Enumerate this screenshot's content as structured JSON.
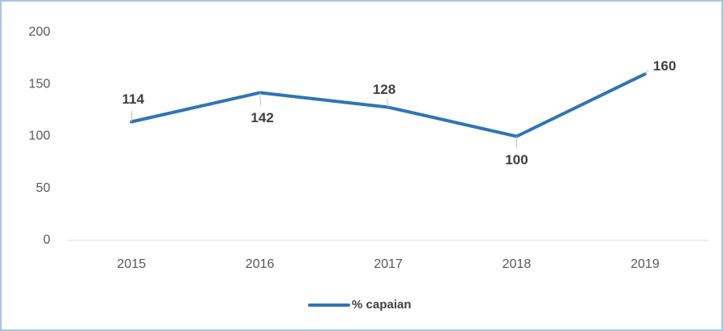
{
  "chart_data": {
    "type": "line",
    "categories": [
      "2015",
      "2016",
      "2017",
      "2018",
      "2019"
    ],
    "series": [
      {
        "name": "% capaian",
        "color": "#2e75b6",
        "values": [
          114,
          142,
          128,
          100,
          160
        ]
      }
    ],
    "ylim": [
      0,
      200
    ],
    "yticks": [
      0,
      50,
      100,
      150,
      200
    ],
    "grid": false,
    "legend": "bottom"
  }
}
